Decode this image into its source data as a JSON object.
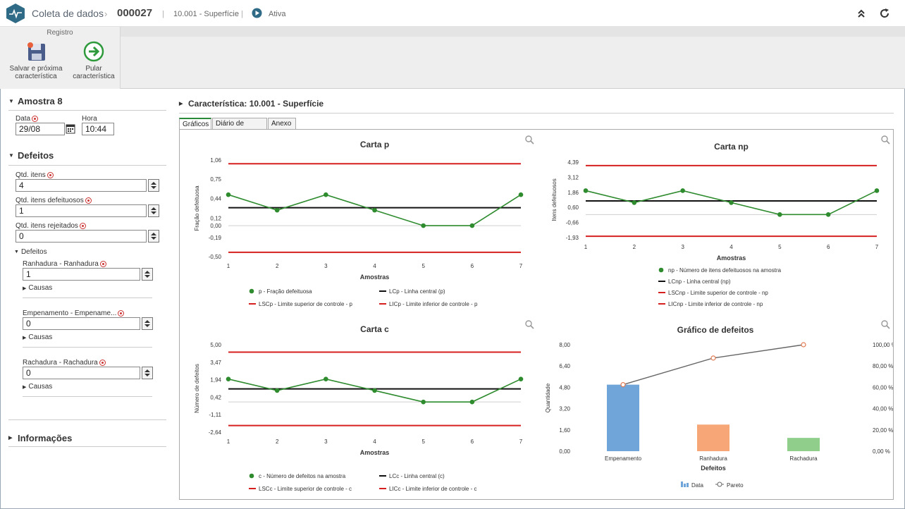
{
  "header": {
    "module": "Coleta de dados",
    "record_id": "000027",
    "characteristic": "10.001 - Superfície",
    "status": "Ativa"
  },
  "ribbon": {
    "group": "Registro",
    "save_next_l1": "Salvar e próxima",
    "save_next_l2": "característica",
    "skip_l1": "Pular",
    "skip_l2": "característica"
  },
  "sample": {
    "title": "Amostra 8",
    "date_label": "Data",
    "date_value": "29/08",
    "time_label": "Hora",
    "time_value": "10:44"
  },
  "defects": {
    "title": "Defeitos",
    "qty_items_label": "Qtd. itens",
    "qty_items_value": "4",
    "qty_defective_label": "Qtd. itens defeituosos",
    "qty_defective_value": "1",
    "qty_rejected_label": "Qtd. itens rejeitados",
    "qty_rejected_value": "0",
    "sub_title": "Defeitos",
    "items": [
      {
        "label": "Ranhadura - Ranhadura",
        "value": "1",
        "causes": "Causas"
      },
      {
        "label": "Empenamento - Empename...",
        "value": "0",
        "causes": "Causas"
      },
      {
        "label": "Rachadura - Rachadura",
        "value": "0",
        "causes": "Causas"
      }
    ]
  },
  "info": {
    "title": "Informações"
  },
  "main": {
    "title": "Característica: 10.001 - Superfície",
    "tabs": [
      "Gráficos",
      "Diário de bordo",
      "Anexo"
    ]
  },
  "colors": {
    "series": "#2e8b2e",
    "center": "#111111",
    "limit": "#d62020",
    "bar1": "#6fa5d8",
    "bar2": "#f7a677",
    "bar3": "#8fce8b",
    "pareto": "#666666"
  },
  "chart_data": [
    {
      "type": "line",
      "title": "Carta p",
      "xlabel": "Amostras",
      "ylabel": "Fração defeituosa",
      "x": [
        1,
        2,
        3,
        4,
        5,
        6,
        7
      ],
      "ytick_labels": [
        "1,06",
        "0,75",
        "0,44",
        "0,12",
        "0,00",
        "-0,19",
        "-0,50"
      ],
      "ylim": [
        -0.5,
        1.06
      ],
      "series": [
        {
          "name": "p - Fração defeituosa",
          "role": "data",
          "values": [
            0.5,
            0.25,
            0.5,
            0.25,
            0.0,
            0.0,
            0.5
          ]
        },
        {
          "name": "LCp - Linha central (p)",
          "role": "center",
          "values": [
            0.29,
            0.29,
            0.29,
            0.29,
            0.29,
            0.29,
            0.29
          ]
        },
        {
          "name": "LSCp - Limite superior de controle - p",
          "role": "limit",
          "values": [
            1.0,
            1.0,
            1.0,
            1.0,
            1.0,
            1.0,
            1.0
          ]
        },
        {
          "name": "LICp - Limite inferior de controle - p",
          "role": "limit",
          "values": [
            -0.43,
            -0.43,
            -0.43,
            -0.43,
            -0.43,
            -0.43,
            -0.43
          ]
        }
      ],
      "legend": "bottom"
    },
    {
      "type": "line",
      "title": "Carta np",
      "xlabel": "Amostras",
      "ylabel": "Itens defeituosos",
      "x": [
        1,
        2,
        3,
        4,
        5,
        6,
        7
      ],
      "ytick_labels": [
        "4,39",
        "3,12",
        "1,86",
        "0,60",
        "-0,66",
        "-1,93"
      ],
      "ylim": [
        -1.93,
        4.39
      ],
      "series": [
        {
          "name": "np - Número de itens defeituosos na amostra",
          "role": "data",
          "values": [
            2,
            1,
            2,
            1,
            0,
            0,
            2
          ]
        },
        {
          "name": "LCnp - Linha central (np)",
          "role": "center",
          "values": [
            1.14,
            1.14,
            1.14,
            1.14,
            1.14,
            1.14,
            1.14
          ]
        },
        {
          "name": "LSCnp - Limite superior de controle - np",
          "role": "limit",
          "values": [
            4.1,
            4.1,
            4.1,
            4.1,
            4.1,
            4.1,
            4.1
          ]
        },
        {
          "name": "LICnp - Limite inferior de controle - np",
          "role": "limit",
          "values": [
            -1.82,
            -1.82,
            -1.82,
            -1.82,
            -1.82,
            -1.82,
            -1.82
          ]
        }
      ],
      "legend": "bottom"
    },
    {
      "type": "line",
      "title": "Carta c",
      "xlabel": "Amostras",
      "ylabel": "Número de defeitos",
      "x": [
        1,
        2,
        3,
        4,
        5,
        6,
        7
      ],
      "ytick_labels": [
        "5,00",
        "3,47",
        "1,94",
        "0,42",
        "-1,11",
        "-2,64"
      ],
      "ylim": [
        -2.64,
        5.0
      ],
      "series": [
        {
          "name": "c - Número de defeitos na amostra",
          "role": "data",
          "values": [
            2,
            1,
            2,
            1,
            0,
            0,
            2
          ]
        },
        {
          "name": "LCc - Linha central (c)",
          "role": "center",
          "values": [
            1.14,
            1.14,
            1.14,
            1.14,
            1.14,
            1.14,
            1.14
          ]
        },
        {
          "name": "LSCc - Limite superior de controle - c",
          "role": "limit",
          "values": [
            4.35,
            4.35,
            4.35,
            4.35,
            4.35,
            4.35,
            4.35
          ]
        },
        {
          "name": "LICc - Limite inferior de controle - c",
          "role": "limit",
          "values": [
            -2.06,
            -2.06,
            -2.06,
            -2.06,
            -2.06,
            -2.06,
            -2.06
          ]
        }
      ],
      "legend": "bottom"
    },
    {
      "type": "bar",
      "title": "Gráfico de defeitos",
      "xlabel": "Defeitos",
      "ylabel": "Quantidade",
      "categories": [
        "Empenamento",
        "Ranhadura",
        "Rachadura"
      ],
      "ytick_labels": [
        "8,00",
        "6,40",
        "4,80",
        "3,20",
        "1,60",
        "0,00"
      ],
      "y2tick_labels": [
        "100,00 %",
        "80,00 %",
        "60,00 %",
        "40,00 %",
        "20,00 %",
        "0,00 %"
      ],
      "ylim": [
        0,
        8
      ],
      "y2lim": [
        0,
        100
      ],
      "series": [
        {
          "name": "Data",
          "values": [
            5,
            2,
            1
          ]
        },
        {
          "name": "Pareto",
          "values": [
            62.5,
            87.5,
            100
          ]
        }
      ],
      "legend": "bottom"
    }
  ]
}
